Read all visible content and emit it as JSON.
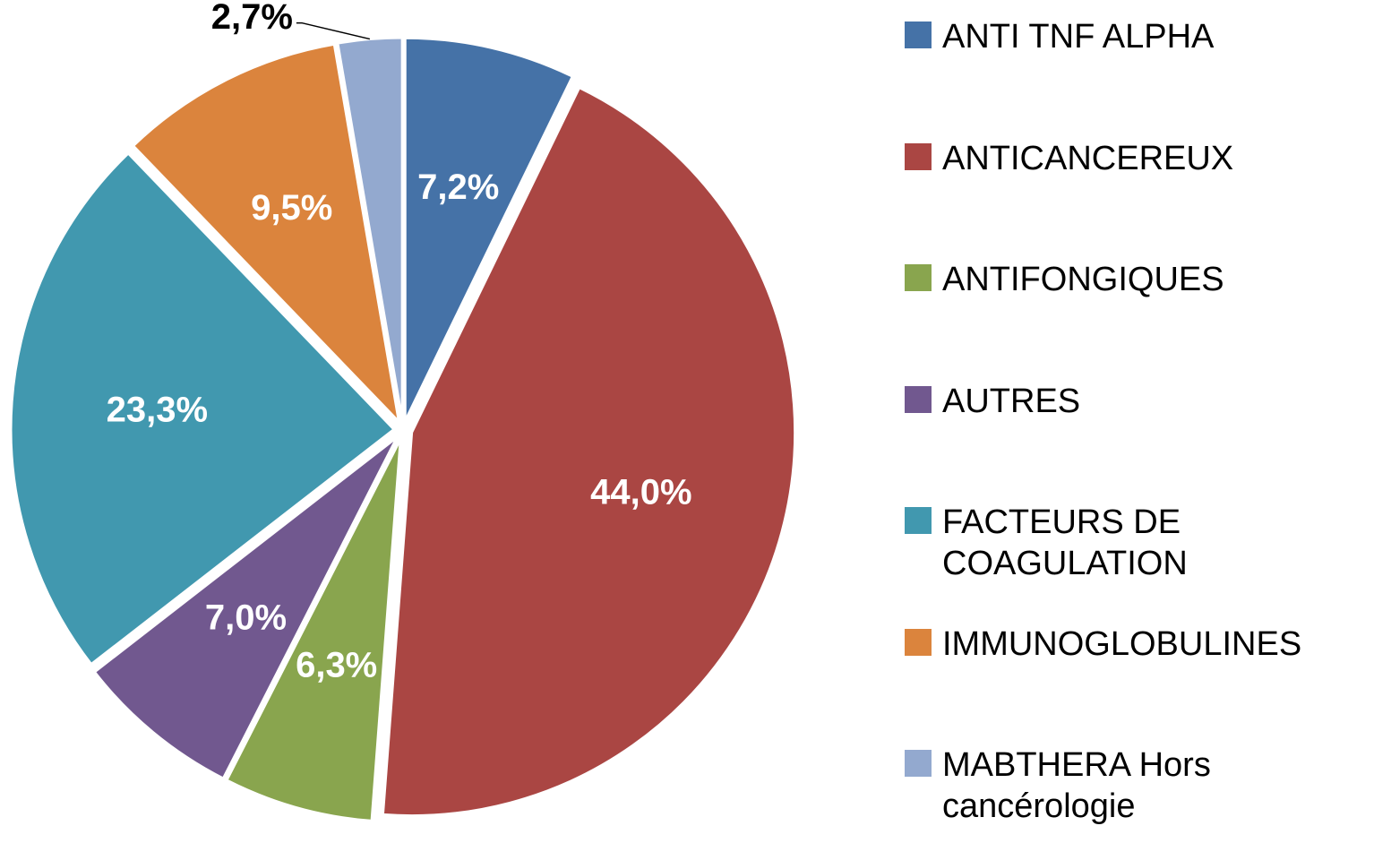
{
  "chart_data": {
    "type": "pie",
    "categories": [
      "ANTI TNF ALPHA",
      "ANTICANCEREUX",
      "ANTIFONGIQUES",
      "AUTRES",
      "FACTEURS DE COAGULATION",
      "IMMUNOGLOBULINES",
      "MABTHERA Hors cancérologie"
    ],
    "values": [
      7.2,
      44.0,
      6.3,
      7.0,
      23.3,
      9.5,
      2.7
    ],
    "value_labels": [
      "7,2%",
      "44,0%",
      "6,3%",
      "7,0%",
      "23,3%",
      "9,5%",
      "2,7%"
    ],
    "colors": [
      "#4572a7",
      "#aa4643",
      "#89a54e",
      "#71588f",
      "#4198af",
      "#db843d",
      "#93a9cf"
    ],
    "legend": "right"
  }
}
